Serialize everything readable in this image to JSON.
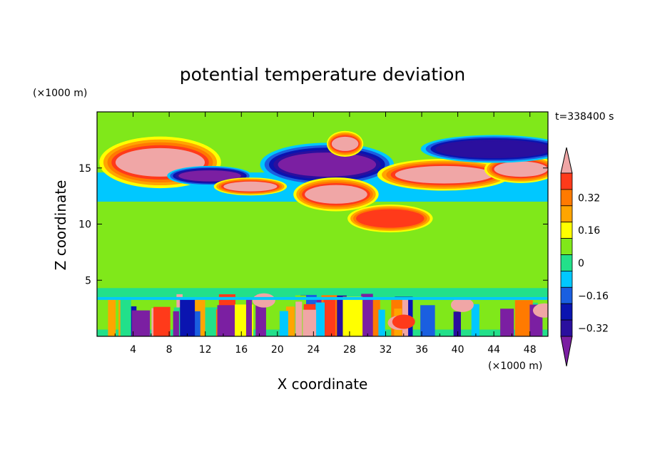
{
  "chart_data": {
    "type": "heatmap",
    "title": "potential temperature deviation",
    "xlabel": "X coordinate",
    "ylabel": "Z coordinate",
    "x_unit": "(×1000 m)",
    "y_unit": "(×1000 m)",
    "time_label": "t=338400 s",
    "xlim": [
      0,
      50
    ],
    "ylim": [
      0,
      20
    ],
    "x_ticks": [
      4,
      8,
      12,
      16,
      20,
      24,
      28,
      32,
      36,
      40,
      44,
      48
    ],
    "y_ticks": [
      5,
      10,
      15
    ],
    "colorbar": {
      "levels": [
        -0.48,
        -0.4,
        -0.32,
        -0.24,
        -0.16,
        -0.08,
        0,
        0.08,
        0.16,
        0.24,
        0.32,
        0.4,
        0.48
      ],
      "colors": [
        "#7b1fa2",
        "#2a0f9e",
        "#0a14b0",
        "#1a5fe0",
        "#00c8ff",
        "#22e08a",
        "#80e81a",
        "#ffff00",
        "#ffa500",
        "#ff7a00",
        "#ff3a1a",
        "#f0a6a6"
      ],
      "tick_values": [
        -0.32,
        -0.16,
        0,
        0.16,
        0.32
      ],
      "tick_labels": [
        "−0.32",
        "−0.16",
        "0",
        "0.16",
        "0.32"
      ],
      "extend": "both"
    },
    "features": [
      {
        "x": [
          2,
          12
        ],
        "z": [
          14.2,
          16.8
        ],
        "value": 0.5
      },
      {
        "x": [
          9,
          16
        ],
        "z": [
          13.8,
          14.8
        ],
        "value": -0.45
      },
      {
        "x": [
          14,
          20
        ],
        "z": [
          12.9,
          13.8
        ],
        "value": 0.45
      },
      {
        "x": [
          20,
          31
        ],
        "z": [
          14.2,
          16.4
        ],
        "value": -0.45
      },
      {
        "x": [
          23,
          30
        ],
        "z": [
          11.8,
          13.5
        ],
        "value": 0.45
      },
      {
        "x": [
          26,
          29
        ],
        "z": [
          16.5,
          17.8
        ],
        "value": 0.45
      },
      {
        "x": [
          33,
          44
        ],
        "z": [
          13.6,
          15.2
        ],
        "value": 0.45
      },
      {
        "x": [
          29,
          36
        ],
        "z": [
          9.8,
          11.2
        ],
        "value": 0.35
      },
      {
        "x": [
          44,
          50
        ],
        "z": [
          14.2,
          15.6
        ],
        "value": 0.45
      },
      {
        "x": [
          38,
          50
        ],
        "z": [
          16.0,
          17.4
        ],
        "value": -0.32
      },
      {
        "x": [
          0,
          50
        ],
        "z": [
          0.3,
          3.5
        ],
        "value": "mixed"
      }
    ]
  }
}
